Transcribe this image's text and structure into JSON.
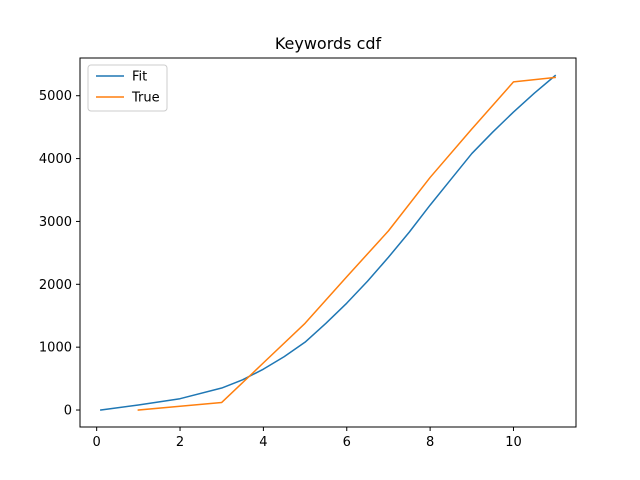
{
  "chart_data": {
    "type": "line",
    "title": "Keywords cdf",
    "xlabel": "",
    "ylabel": "",
    "xlim": [
      -0.4,
      11.5
    ],
    "ylim": [
      -270,
      5600
    ],
    "xticks": [
      0,
      2,
      4,
      6,
      8,
      10
    ],
    "yticks": [
      0,
      1000,
      2000,
      3000,
      4000,
      5000
    ],
    "legend": "upper left",
    "grid": false,
    "series": [
      {
        "name": "Fit",
        "color": "#1f77b4",
        "x": [
          0.1,
          1,
          2,
          3,
          3.5,
          4,
          4.5,
          5,
          5.5,
          6,
          6.5,
          7,
          7.5,
          8,
          8.5,
          9,
          9.5,
          10,
          10.5,
          11
        ],
        "y": [
          0,
          80,
          180,
          350,
          480,
          650,
          850,
          1080,
          1380,
          1700,
          2050,
          2430,
          2830,
          3260,
          3670,
          4080,
          4420,
          4740,
          5040,
          5320
        ]
      },
      {
        "name": "True",
        "color": "#ff7f0e",
        "x": [
          1,
          2,
          3,
          4,
          5,
          6,
          7,
          8,
          9,
          10,
          11
        ],
        "y": [
          0,
          60,
          120,
          750,
          1380,
          2120,
          2850,
          3700,
          4470,
          5220,
          5290
        ]
      }
    ]
  }
}
